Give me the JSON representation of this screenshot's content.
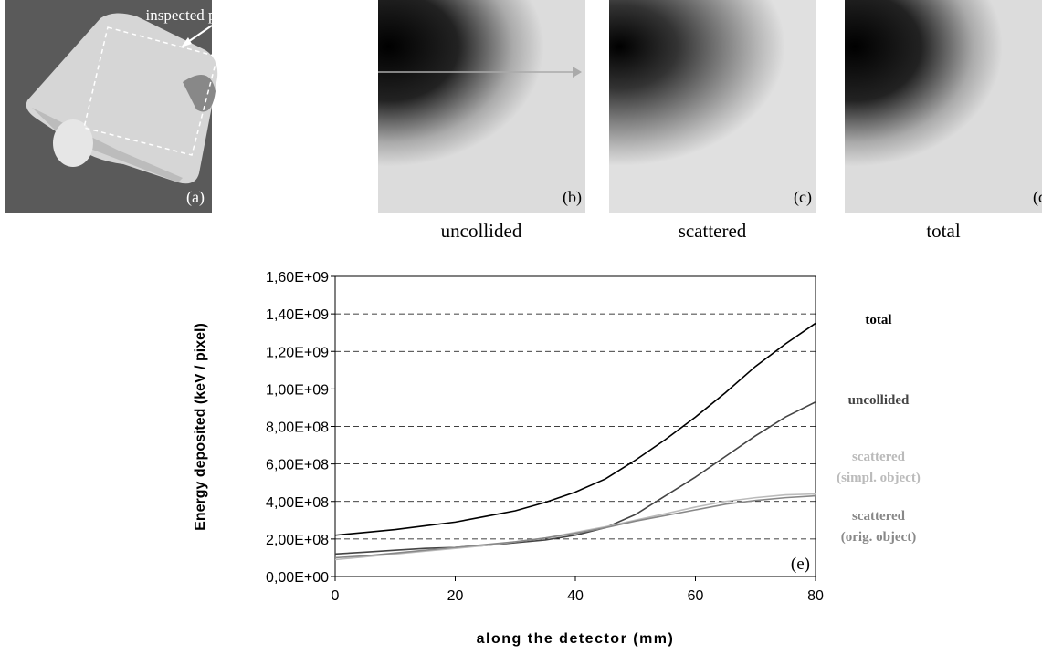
{
  "figure": {
    "annotation": "inspected part",
    "panels": [
      {
        "label": "(a)"
      },
      {
        "label": "(b)",
        "caption": "uncollided"
      },
      {
        "label": "(c)",
        "caption": "scattered"
      },
      {
        "label": "(d)",
        "caption": "total"
      }
    ]
  },
  "chart_data": {
    "type": "line",
    "panel_label": "(e)",
    "xlabel": "along the detector (mm)",
    "ylabel": "Energy deposited (keV / pixel)",
    "x": [
      0,
      5,
      10,
      15,
      20,
      25,
      30,
      35,
      40,
      45,
      50,
      55,
      60,
      65,
      70,
      75,
      80
    ],
    "xlim": [
      0,
      80
    ],
    "xticks": [
      0,
      20,
      40,
      60,
      80
    ],
    "ylim": [
      0,
      1600000000.0
    ],
    "yticks": [
      {
        "value": 0,
        "label": "0,00E+00"
      },
      {
        "value": 200000000.0,
        "label": "2,00E+08"
      },
      {
        "value": 400000000.0,
        "label": "4,00E+08"
      },
      {
        "value": 600000000.0,
        "label": "6,00E+08"
      },
      {
        "value": 800000000.0,
        "label": "8,00E+08"
      },
      {
        "value": 1000000000.0,
        "label": "1,00E+09"
      },
      {
        "value": 1200000000.0,
        "label": "1,20E+09"
      },
      {
        "value": 1400000000.0,
        "label": "1,40E+09"
      },
      {
        "value": 1600000000.0,
        "label": "1,60E+09"
      }
    ],
    "grid": true,
    "series": [
      {
        "name": [
          "total"
        ],
        "color": "#000000",
        "values": [
          220000000.0,
          235000000.0,
          250000000.0,
          270000000.0,
          290000000.0,
          320000000.0,
          350000000.0,
          395000000.0,
          450000000.0,
          520000000.0,
          620000000.0,
          730000000.0,
          850000000.0,
          980000000.0,
          1120000000.0,
          1240000000.0,
          1350000000.0
        ]
      },
      {
        "name": [
          "uncollided"
        ],
        "color": "#444444",
        "values": [
          120000000.0,
          130000000.0,
          140000000.0,
          150000000.0,
          155000000.0,
          165000000.0,
          180000000.0,
          195000000.0,
          220000000.0,
          260000000.0,
          330000000.0,
          430000000.0,
          530000000.0,
          640000000.0,
          750000000.0,
          850000000.0,
          930000000.0
        ]
      },
      {
        "name": [
          "scattered",
          "(simpl. object)"
        ],
        "color": "#bbbbbb",
        "values": [
          90000000.0,
          105000000.0,
          120000000.0,
          135000000.0,
          150000000.0,
          165000000.0,
          185000000.0,
          205000000.0,
          235000000.0,
          265000000.0,
          300000000.0,
          335000000.0,
          370000000.0,
          400000000.0,
          420000000.0,
          435000000.0,
          440000000.0
        ]
      },
      {
        "name": [
          "scattered",
          "(orig. object)"
        ],
        "color": "#888888",
        "values": [
          100000000.0,
          110000000.0,
          125000000.0,
          140000000.0,
          155000000.0,
          170000000.0,
          185000000.0,
          205000000.0,
          230000000.0,
          260000000.0,
          295000000.0,
          325000000.0,
          355000000.0,
          385000000.0,
          405000000.0,
          420000000.0,
          430000000.0
        ]
      }
    ]
  }
}
